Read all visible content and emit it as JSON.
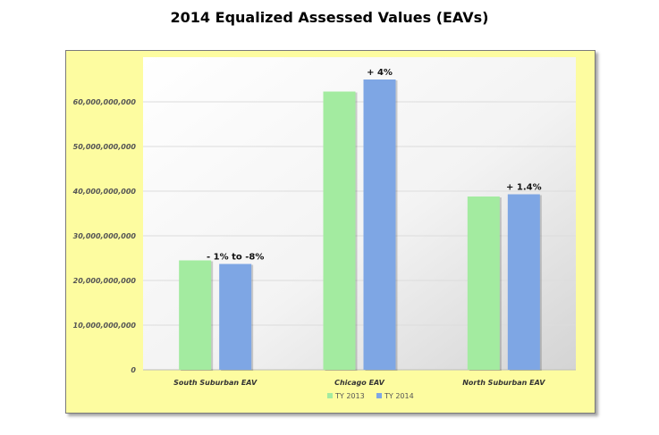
{
  "page": {
    "title": "2014 Equalized Assessed Values (EAVs)"
  },
  "chart_data": {
    "type": "bar",
    "title": "2014 Equalized Assessed Values (EAVs)",
    "xlabel": "",
    "ylabel": "",
    "categories": [
      "South Suburban EAV",
      "Chicago EAV",
      "North Suburban EAV"
    ],
    "series": [
      {
        "name": "TY 2013",
        "color": "#a3eba0",
        "values": [
          24500000000,
          62300000000,
          38800000000
        ]
      },
      {
        "name": "TY 2014",
        "color": "#7ea6e4",
        "values": [
          23700000000,
          65000000000,
          39300000000
        ]
      }
    ],
    "annotations": [
      "- 1% to -8%",
      "+ 4%",
      "+ 1.4%"
    ],
    "ylim": [
      0,
      70000000000
    ],
    "yticks": [
      0,
      10000000000,
      20000000000,
      30000000000,
      40000000000,
      50000000000,
      60000000000
    ],
    "ytick_labels": [
      "0",
      "10,000,000,000",
      "20,000,000,000",
      "30,000,000,000",
      "40,000,000,000",
      "50,000,000,000",
      "60,000,000,000"
    ],
    "grid": true,
    "legend": "bottom-center",
    "background_color": "#fdfca0"
  }
}
